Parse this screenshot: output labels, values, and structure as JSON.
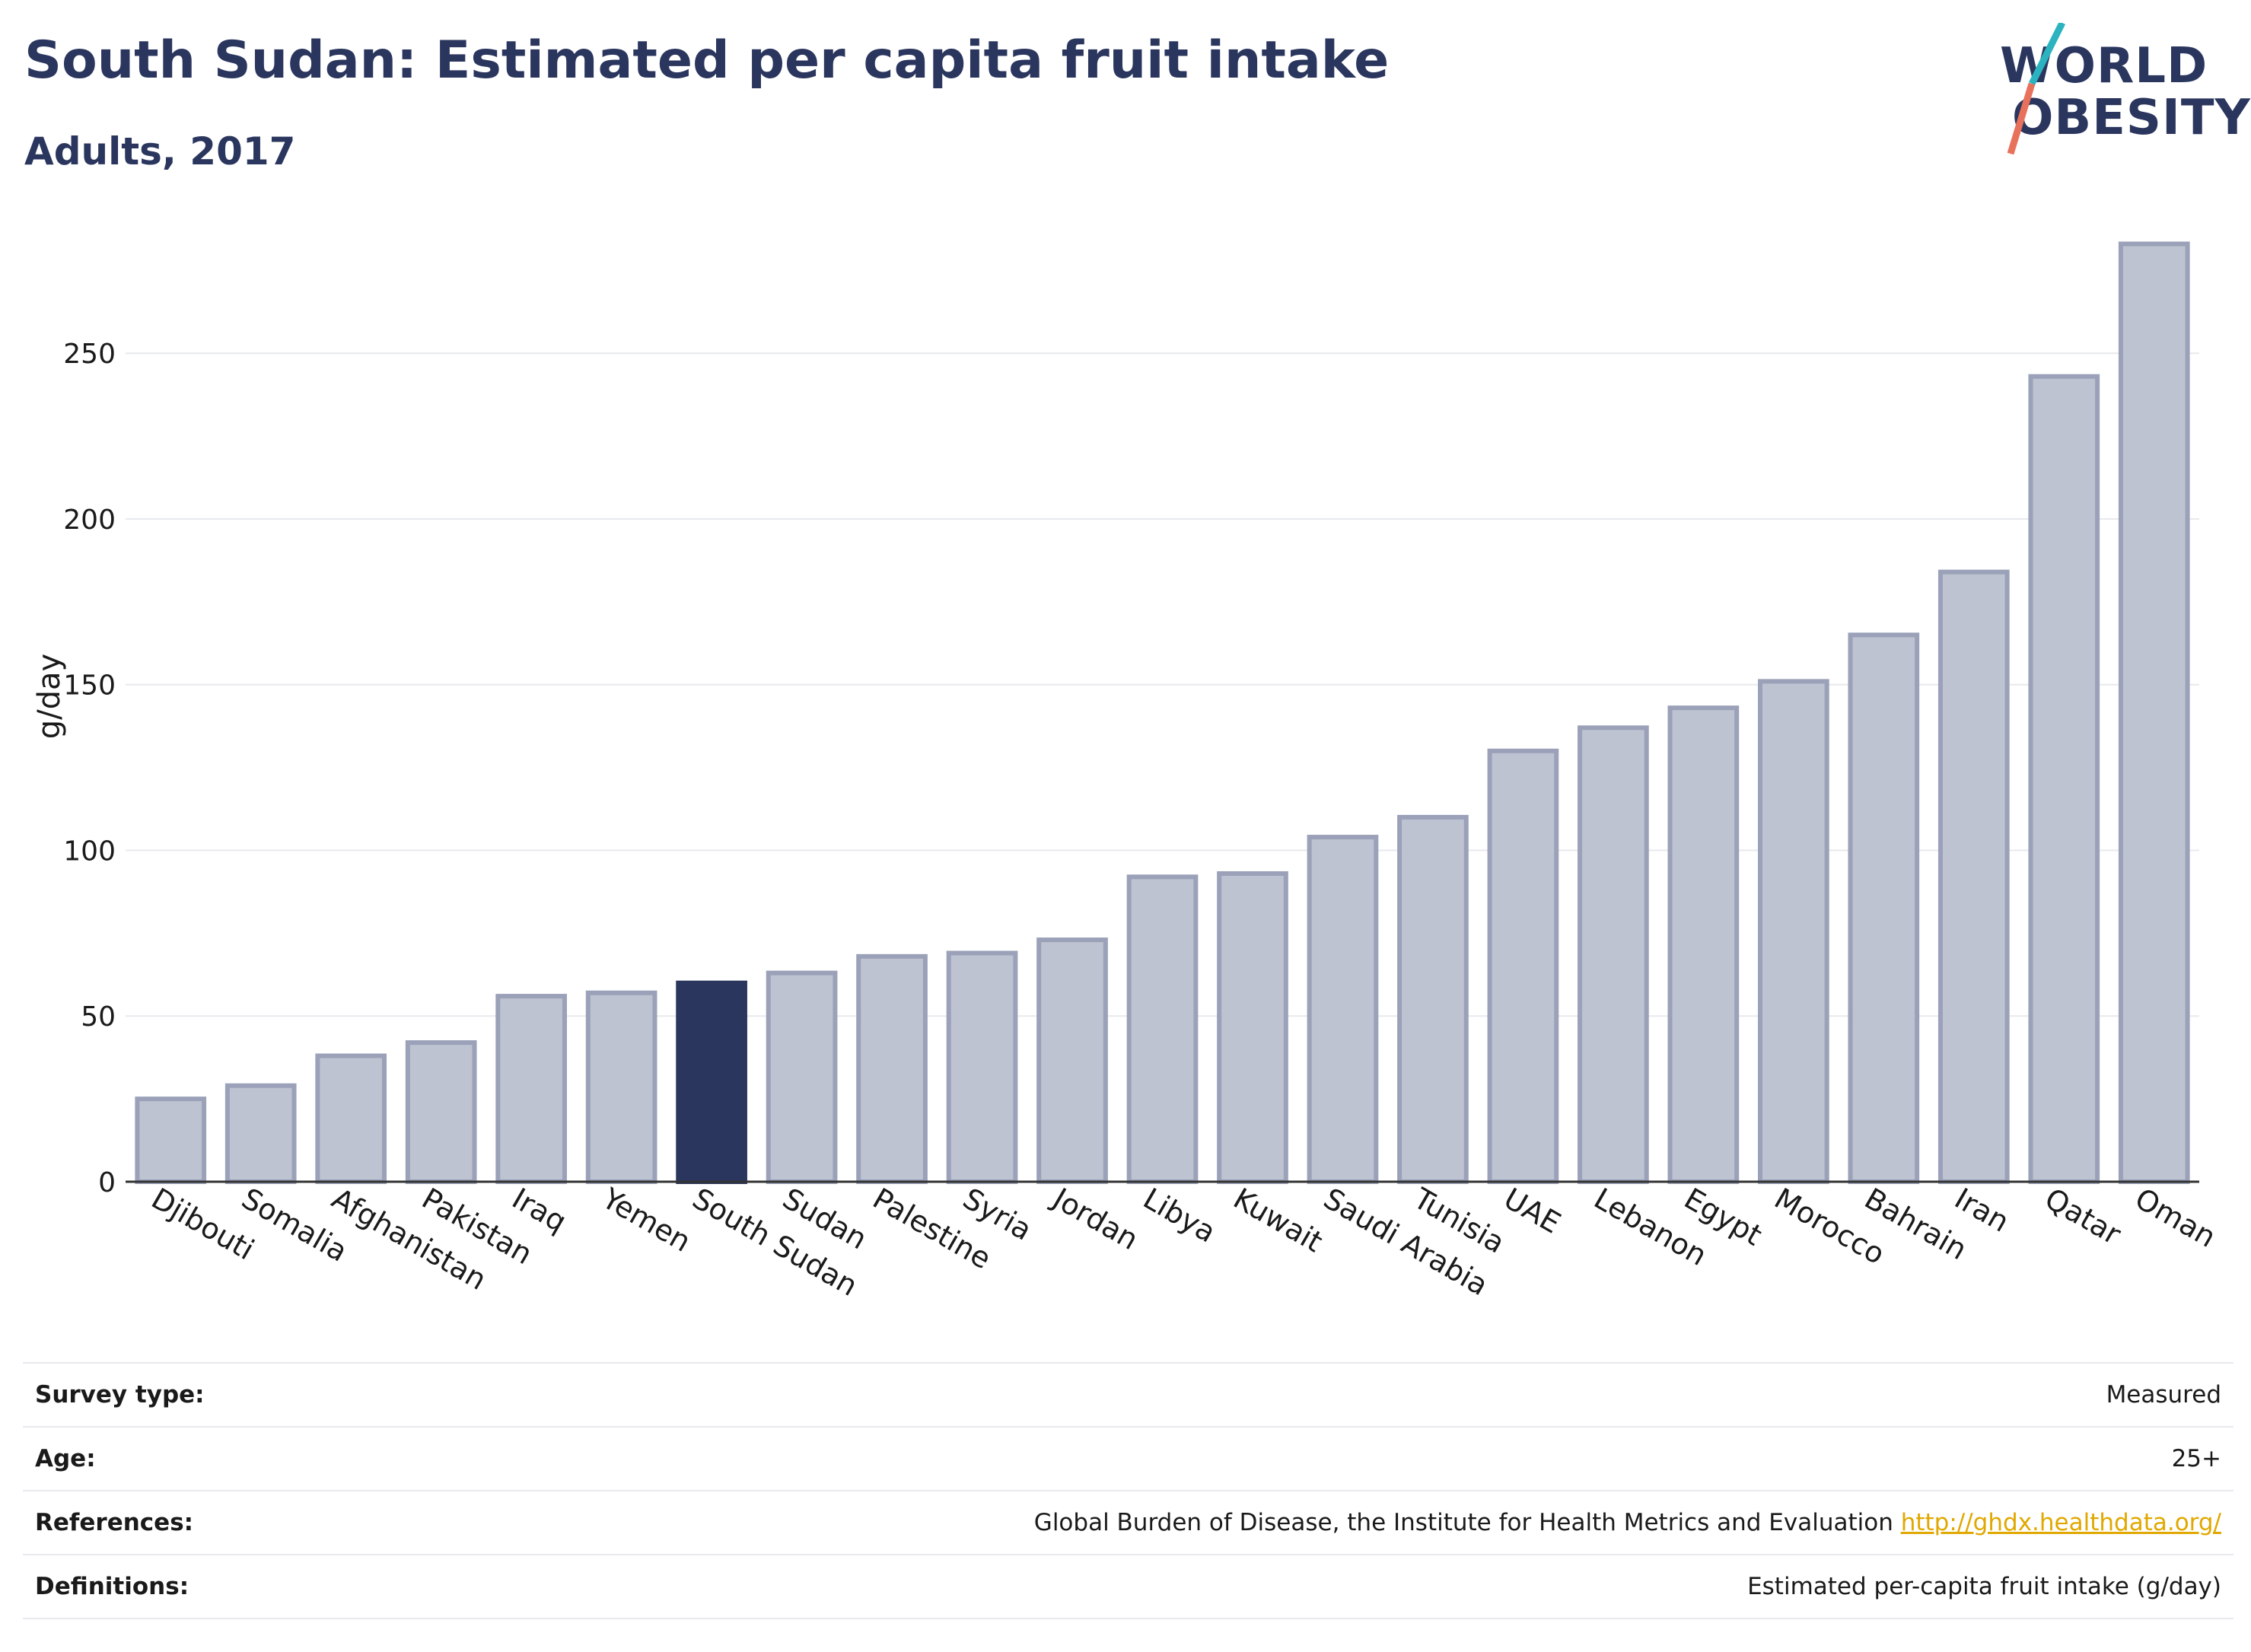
{
  "header": {
    "title": "South Sudan: Estimated per capita fruit intake",
    "subtitle": "Adults, 2017",
    "logo_line1": "WORLD",
    "logo_line2": "OBESITY"
  },
  "colors": {
    "title": "#2b365e",
    "bar": "#bec3d1",
    "bar_border": "#9aa1b8",
    "highlight": "#2b365e",
    "grid": "#e7e9ee",
    "link": "#e0a800",
    "logo_teal": "#2bb3c0",
    "logo_coral": "#e8715c"
  },
  "chart_data": {
    "type": "bar",
    "categories": [
      "Djibouti",
      "Somalia",
      "Afghanistan",
      "Pakistan",
      "Iraq",
      "Yemen",
      "South Sudan",
      "Sudan",
      "Palestine",
      "Syria",
      "Jordan",
      "Libya",
      "Kuwait",
      "Saudi Arabia",
      "Tunisia",
      "UAE",
      "Lebanon",
      "Egypt",
      "Morocco",
      "Bahrain",
      "Iran",
      "Qatar",
      "Oman"
    ],
    "values": [
      25,
      29,
      38,
      42,
      56,
      57,
      60,
      63,
      68,
      69,
      73,
      92,
      93,
      104,
      110,
      130,
      137,
      143,
      151,
      165,
      184,
      243,
      283
    ],
    "highlight": "South Sudan",
    "ylabel": "g/day",
    "xlabel": "",
    "ylim": [
      0,
      290
    ],
    "yticks": [
      0,
      50,
      100,
      150,
      200,
      250
    ],
    "grid": true
  },
  "info": {
    "survey_type_label": "Survey type:",
    "survey_type_value": "Measured",
    "age_label": "Age:",
    "age_value": "25+",
    "references_label": "References:",
    "references_value": "Global Burden of Disease, the Institute for Health Metrics and Evaluation",
    "references_link": "http://ghdx.healthdata.org/",
    "definitions_label": "Definitions:",
    "definitions_value": "Estimated per-capita fruit intake (g/day)"
  }
}
